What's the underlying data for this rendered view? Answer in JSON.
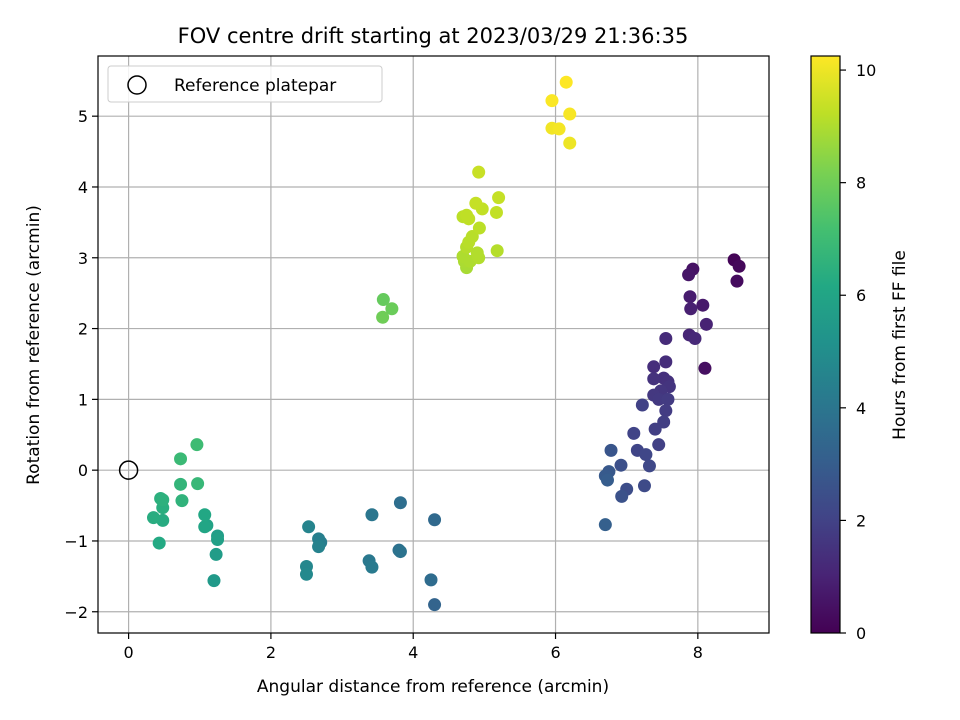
{
  "chart_data": {
    "type": "scatter",
    "title": "FOV centre drift starting at 2023/03/29 21:36:35",
    "xlabel": "Angular distance from reference (arcmin)",
    "ylabel": "Rotation from reference (arcmin)",
    "xlim": [
      -0.43,
      9.0
    ],
    "ylim": [
      -2.3,
      5.85
    ],
    "xticks": [
      0,
      2,
      4,
      6,
      8
    ],
    "yticks": [
      -2,
      -1,
      0,
      1,
      2,
      3,
      4,
      5
    ],
    "grid": true,
    "legend": {
      "position": "top-left",
      "entries": [
        "Reference platepar"
      ]
    },
    "reference_point": {
      "x": 0,
      "y": 0,
      "marker": "open-circle",
      "label": "Reference platepar"
    },
    "colorbar": {
      "label": "Hours from first FF file",
      "colormap": "viridis",
      "range": [
        0,
        10.25
      ],
      "ticks": [
        0,
        2,
        4,
        6,
        8,
        10
      ]
    },
    "points": [
      {
        "x": 8.51,
        "y": 2.97,
        "c": 0.1
      },
      {
        "x": 8.58,
        "y": 2.88,
        "c": 0.2
      },
      {
        "x": 8.55,
        "y": 2.67,
        "c": 0.3
      },
      {
        "x": 8.1,
        "y": 1.44,
        "c": 0.4
      },
      {
        "x": 7.93,
        "y": 2.84,
        "c": 0.5
      },
      {
        "x": 7.87,
        "y": 2.76,
        "c": 0.6
      },
      {
        "x": 8.07,
        "y": 2.33,
        "c": 0.7
      },
      {
        "x": 7.89,
        "y": 2.45,
        "c": 0.8
      },
      {
        "x": 7.9,
        "y": 2.28,
        "c": 0.9
      },
      {
        "x": 8.12,
        "y": 2.06,
        "c": 1.0
      },
      {
        "x": 7.88,
        "y": 1.91,
        "c": 1.1
      },
      {
        "x": 7.96,
        "y": 1.86,
        "c": 1.2
      },
      {
        "x": 7.55,
        "y": 1.86,
        "c": 1.25
      },
      {
        "x": 7.55,
        "y": 1.53,
        "c": 1.3
      },
      {
        "x": 7.38,
        "y": 1.46,
        "c": 1.35
      },
      {
        "x": 7.52,
        "y": 1.3,
        "c": 1.4
      },
      {
        "x": 7.58,
        "y": 1.25,
        "c": 1.45
      },
      {
        "x": 7.38,
        "y": 1.29,
        "c": 1.5
      },
      {
        "x": 7.6,
        "y": 1.18,
        "c": 1.55
      },
      {
        "x": 7.48,
        "y": 1.12,
        "c": 1.6
      },
      {
        "x": 7.38,
        "y": 1.06,
        "c": 1.65
      },
      {
        "x": 7.45,
        "y": 1.0,
        "c": 1.7
      },
      {
        "x": 7.58,
        "y": 1.0,
        "c": 1.75
      },
      {
        "x": 7.55,
        "y": 0.84,
        "c": 1.8
      },
      {
        "x": 7.52,
        "y": 0.68,
        "c": 1.85
      },
      {
        "x": 7.4,
        "y": 0.58,
        "c": 1.9
      },
      {
        "x": 7.45,
        "y": 0.36,
        "c": 1.95
      },
      {
        "x": 7.22,
        "y": 0.92,
        "c": 2.0
      },
      {
        "x": 7.1,
        "y": 0.52,
        "c": 2.05
      },
      {
        "x": 7.15,
        "y": 0.28,
        "c": 2.1
      },
      {
        "x": 7.27,
        "y": 0.22,
        "c": 2.15
      },
      {
        "x": 7.32,
        "y": 0.06,
        "c": 2.2
      },
      {
        "x": 7.25,
        "y": -0.22,
        "c": 2.3
      },
      {
        "x": 7.0,
        "y": -0.27,
        "c": 2.4
      },
      {
        "x": 6.92,
        "y": 0.07,
        "c": 2.5
      },
      {
        "x": 6.93,
        "y": -0.37,
        "c": 2.6
      },
      {
        "x": 6.78,
        "y": 0.28,
        "c": 2.7
      },
      {
        "x": 6.75,
        "y": -0.02,
        "c": 2.8
      },
      {
        "x": 6.7,
        "y": -0.08,
        "c": 2.9
      },
      {
        "x": 6.73,
        "y": -0.14,
        "c": 3.0
      },
      {
        "x": 6.7,
        "y": -0.77,
        "c": 3.1
      },
      {
        "x": 4.3,
        "y": -1.9,
        "c": 3.3
      },
      {
        "x": 4.3,
        "y": -0.7,
        "c": 3.5
      },
      {
        "x": 4.25,
        "y": -1.55,
        "c": 3.6
      },
      {
        "x": 3.82,
        "y": -0.46,
        "c": 3.7
      },
      {
        "x": 3.8,
        "y": -1.13,
        "c": 3.8
      },
      {
        "x": 3.82,
        "y": -1.15,
        "c": 3.9
      },
      {
        "x": 3.42,
        "y": -0.63,
        "c": 4.0
      },
      {
        "x": 3.38,
        "y": -1.28,
        "c": 4.1
      },
      {
        "x": 3.42,
        "y": -1.37,
        "c": 4.2
      },
      {
        "x": 2.7,
        "y": -1.02,
        "c": 4.3
      },
      {
        "x": 2.67,
        "y": -0.97,
        "c": 4.4
      },
      {
        "x": 2.67,
        "y": -1.08,
        "c": 4.5
      },
      {
        "x": 2.53,
        "y": -0.8,
        "c": 4.6
      },
      {
        "x": 2.5,
        "y": -1.36,
        "c": 4.7
      },
      {
        "x": 2.5,
        "y": -1.47,
        "c": 4.8
      },
      {
        "x": 1.2,
        "y": -1.56,
        "c": 5.5
      },
      {
        "x": 1.23,
        "y": -1.19,
        "c": 5.6
      },
      {
        "x": 1.25,
        "y": -0.93,
        "c": 5.7
      },
      {
        "x": 1.25,
        "y": -0.98,
        "c": 5.8
      },
      {
        "x": 1.1,
        "y": -0.78,
        "c": 5.9
      },
      {
        "x": 1.07,
        "y": -0.8,
        "c": 6.0
      },
      {
        "x": 1.07,
        "y": -0.63,
        "c": 6.1
      },
      {
        "x": 0.43,
        "y": -1.03,
        "c": 6.2
      },
      {
        "x": 0.48,
        "y": -0.71,
        "c": 6.3
      },
      {
        "x": 0.35,
        "y": -0.67,
        "c": 6.35
      },
      {
        "x": 0.48,
        "y": -0.53,
        "c": 6.4
      },
      {
        "x": 0.45,
        "y": -0.4,
        "c": 6.45
      },
      {
        "x": 0.48,
        "y": -0.42,
        "c": 6.5
      },
      {
        "x": 0.75,
        "y": -0.43,
        "c": 6.6
      },
      {
        "x": 0.73,
        "y": -0.2,
        "c": 6.7
      },
      {
        "x": 0.97,
        "y": -0.19,
        "c": 6.8
      },
      {
        "x": 0.73,
        "y": 0.16,
        "c": 6.9
      },
      {
        "x": 0.96,
        "y": 0.36,
        "c": 7.0
      },
      {
        "x": 3.58,
        "y": 2.41,
        "c": 7.8
      },
      {
        "x": 3.7,
        "y": 2.28,
        "c": 7.9
      },
      {
        "x": 3.57,
        "y": 2.16,
        "c": 8.0
      },
      {
        "x": 4.75,
        "y": 2.86,
        "c": 8.9
      },
      {
        "x": 4.72,
        "y": 2.95,
        "c": 8.95
      },
      {
        "x": 4.7,
        "y": 3.02,
        "c": 9.0
      },
      {
        "x": 4.8,
        "y": 2.95,
        "c": 9.0
      },
      {
        "x": 4.92,
        "y": 3.0,
        "c": 9.05
      },
      {
        "x": 4.9,
        "y": 3.07,
        "c": 9.05
      },
      {
        "x": 5.18,
        "y": 3.1,
        "c": 9.1
      },
      {
        "x": 4.75,
        "y": 3.15,
        "c": 9.1
      },
      {
        "x": 4.78,
        "y": 3.22,
        "c": 9.15
      },
      {
        "x": 4.83,
        "y": 3.3,
        "c": 9.15
      },
      {
        "x": 4.93,
        "y": 3.42,
        "c": 9.2
      },
      {
        "x": 4.7,
        "y": 3.58,
        "c": 9.2
      },
      {
        "x": 4.75,
        "y": 3.6,
        "c": 9.25
      },
      {
        "x": 4.78,
        "y": 3.55,
        "c": 9.25
      },
      {
        "x": 5.17,
        "y": 3.64,
        "c": 9.3
      },
      {
        "x": 4.97,
        "y": 3.69,
        "c": 9.3
      },
      {
        "x": 4.88,
        "y": 3.77,
        "c": 9.35
      },
      {
        "x": 5.2,
        "y": 3.85,
        "c": 9.35
      },
      {
        "x": 4.92,
        "y": 4.21,
        "c": 9.4
      },
      {
        "x": 6.2,
        "y": 4.62,
        "c": 10.0
      },
      {
        "x": 5.95,
        "y": 4.83,
        "c": 10.05
      },
      {
        "x": 6.05,
        "y": 4.82,
        "c": 10.1
      },
      {
        "x": 6.2,
        "y": 5.03,
        "c": 10.15
      },
      {
        "x": 5.95,
        "y": 5.22,
        "c": 10.2
      },
      {
        "x": 6.15,
        "y": 5.48,
        "c": 10.25
      }
    ]
  }
}
